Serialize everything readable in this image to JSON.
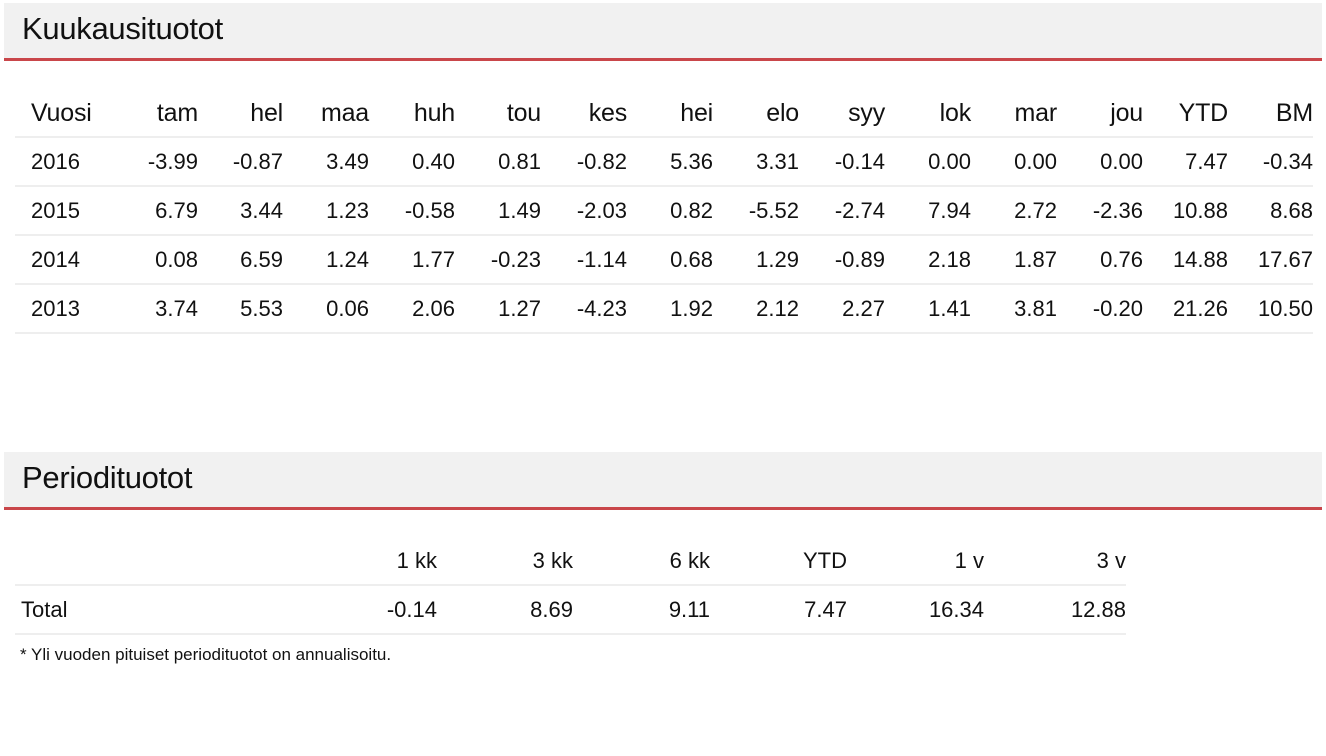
{
  "monthly": {
    "title": "Kuukausituotot",
    "columns": [
      "Vuosi",
      "tam",
      "hel",
      "maa",
      "huh",
      "tou",
      "kes",
      "hei",
      "elo",
      "syy",
      "lok",
      "mar",
      "jou",
      "YTD",
      "BM"
    ],
    "rows": [
      [
        "2016",
        "-3.99",
        "-0.87",
        "3.49",
        "0.40",
        "0.81",
        "-0.82",
        "5.36",
        "3.31",
        "-0.14",
        "0.00",
        "0.00",
        "0.00",
        "7.47",
        "-0.34"
      ],
      [
        "2015",
        "6.79",
        "3.44",
        "1.23",
        "-0.58",
        "1.49",
        "-2.03",
        "0.82",
        "-5.52",
        "-2.74",
        "7.94",
        "2.72",
        "-2.36",
        "10.88",
        "8.68"
      ],
      [
        "2014",
        "0.08",
        "6.59",
        "1.24",
        "1.77",
        "-0.23",
        "-1.14",
        "0.68",
        "1.29",
        "-0.89",
        "2.18",
        "1.87",
        "0.76",
        "14.88",
        "17.67"
      ],
      [
        "2013",
        "3.74",
        "5.53",
        "0.06",
        "2.06",
        "1.27",
        "-4.23",
        "1.92",
        "2.12",
        "2.27",
        "1.41",
        "3.81",
        "-0.20",
        "21.26",
        "10.50"
      ]
    ]
  },
  "period": {
    "title": "Periodituotot",
    "columns": [
      "",
      "1 kk",
      "3 kk",
      "6 kk",
      "YTD",
      "1 v",
      "3 v"
    ],
    "rows": [
      [
        "Total",
        "-0.14",
        "8.69",
        "9.11",
        "7.47",
        "16.34",
        "12.88"
      ]
    ],
    "footnote": "* Yli vuoden pituiset periodituotot on annualisoitu."
  },
  "colors": {
    "accent": "#c9464a",
    "header_bg": "#f1f1f1",
    "row_divider": "#eeeeee"
  }
}
